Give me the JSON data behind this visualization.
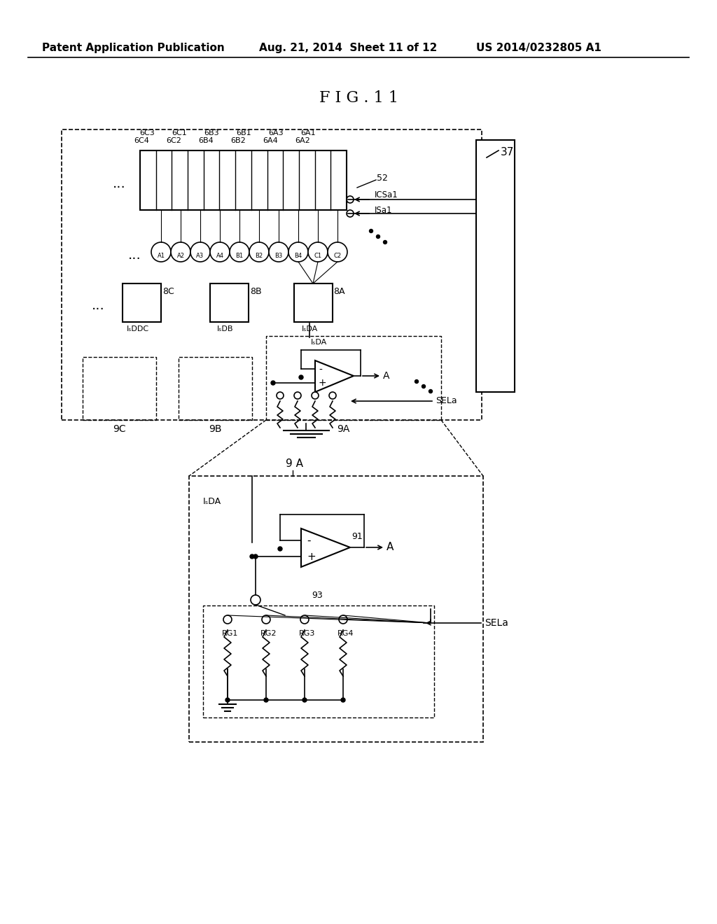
{
  "title": "F I G . 1 1",
  "header_left": "Patent Application Publication",
  "header_center": "Aug. 21, 2014  Sheet 11 of 12",
  "header_right": "US 2014/0232805 A1",
  "bg_color": "#ffffff",
  "line_color": "#000000",
  "fig_width": 10.24,
  "fig_height": 13.2
}
